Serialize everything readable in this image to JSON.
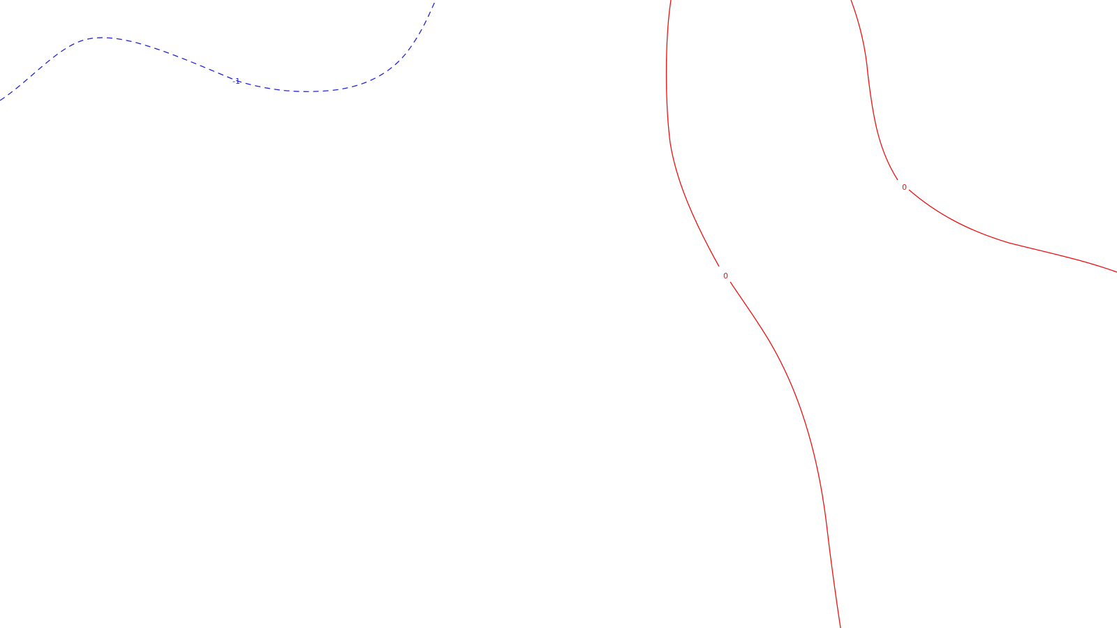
{
  "contours": {
    "negative": {
      "label": "-1",
      "color": "#2222dd",
      "style": "dashed"
    },
    "zero_left": {
      "label": "0",
      "color": "#ee1111",
      "style": "solid"
    },
    "zero_right": {
      "label": "0",
      "color": "#ee1111",
      "style": "solid"
    }
  }
}
